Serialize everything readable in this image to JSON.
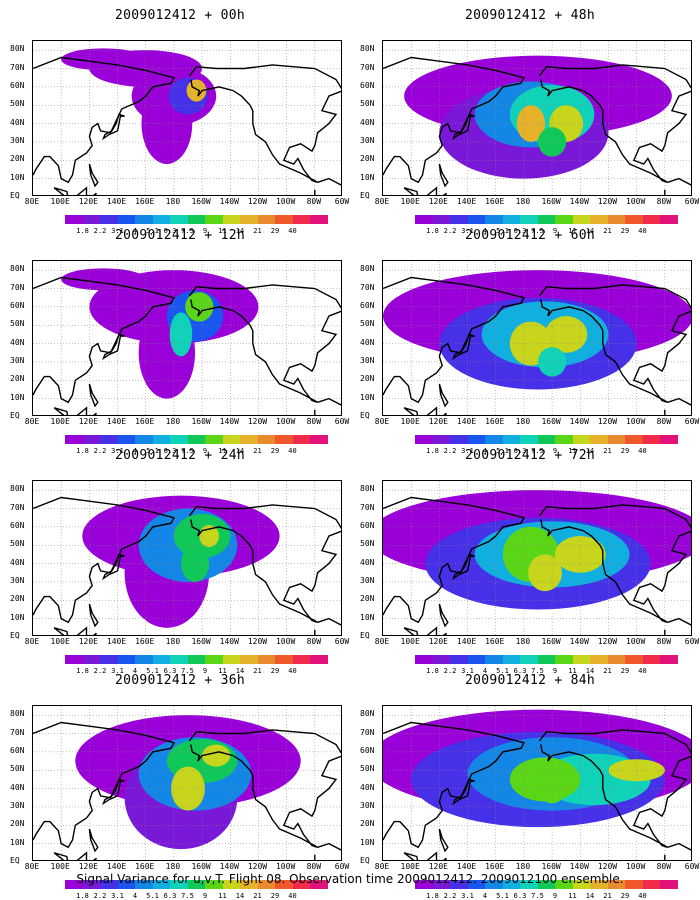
{
  "panels": [
    {
      "title": "2009012412 + 00h"
    },
    {
      "title": "2009012412 + 48h"
    },
    {
      "title": "2009012412 + 12h"
    },
    {
      "title": "2009012412 + 60h"
    },
    {
      "title": "2009012412 + 24h"
    },
    {
      "title": "2009012412 + 72h"
    },
    {
      "title": "2009012412 + 36h"
    },
    {
      "title": "2009012412 + 84h"
    }
  ],
  "lat_labels": [
    "80N",
    "70N",
    "60N",
    "50N",
    "40N",
    "30N",
    "20N",
    "10N",
    "EQ"
  ],
  "lon_labels": [
    "80E",
    "100E",
    "120E",
    "140E",
    "160E",
    "180",
    "160W",
    "140W",
    "120W",
    "100W",
    "80W",
    "60W"
  ],
  "colorbar": {
    "labels": [
      "1.8",
      "2.2",
      "3.1",
      "4",
      "5.1",
      "6.3",
      "7.5",
      "9",
      "11",
      "14",
      "21",
      "29",
      "40"
    ],
    "colors": [
      "#9a00d8",
      "#7a18d8",
      "#4630e8",
      "#1b55f0",
      "#1487e6",
      "#11aee0",
      "#0fd2b8",
      "#10c858",
      "#5ad616",
      "#c8d51d",
      "#e6b229",
      "#ea8a2e",
      "#ef582c",
      "#f22a4c",
      "#e1127a"
    ]
  },
  "footer": "Signal Variance for u,v,T. Flight 08. Observation time 2009012412. 2009012100 ensemble."
}
